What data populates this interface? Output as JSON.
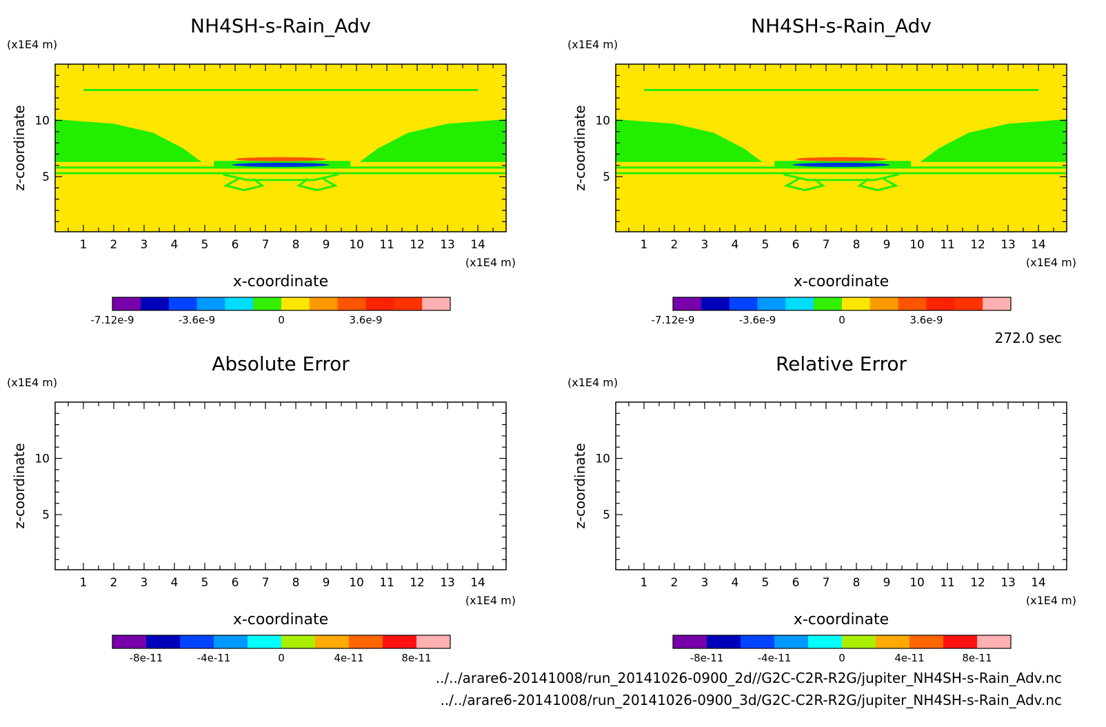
{
  "time_label": "272.0 sec",
  "file_paths": [
    "../../arare6-20141008/run_20141026-0900_2d//G2C-C2R-R2G/jupiter_NH4SH-s-Rain_Adv.nc",
    "../../arare6-20141008/run_20141026-0900_3d/G2C-C2R-R2G/jupiter_NH4SH-s-Rain_Adv.nc"
  ],
  "colors": {
    "field_background": "#ffe600",
    "field_zero_band": "#22ee00",
    "field_positive": "#ff5500",
    "field_negative": "#0033dd"
  },
  "chart_data": [
    {
      "type": "heatmap",
      "title": "NH4SH-s-Rain_Adv",
      "xlabel": "x-coordinate",
      "ylabel": "z-coordinate",
      "x_unit": "(x1E4 m)",
      "y_unit": "(x1E4 m)",
      "xlim": [
        0.07,
        14.93
      ],
      "ylim": [
        0.1,
        15.0
      ],
      "x_ticks": [
        "1",
        "2",
        "3",
        "4",
        "5",
        "6",
        "7",
        "8",
        "9",
        "10",
        "11",
        "12",
        "13",
        "14"
      ],
      "y_ticks": [
        "5",
        "10"
      ],
      "has_field": true,
      "colorbar": {
        "colors": [
          "#7700aa",
          "#0000bb",
          "#0044ff",
          "#0099ff",
          "#00ddff",
          "#33ee00",
          "#ffe600",
          "#ff9900",
          "#ff5500",
          "#ff2200",
          "#ff3300",
          "#ffb0b0"
        ],
        "ticks": [
          {
            "label": "-7.12e-9",
            "pos": 0.0
          },
          {
            "label": "-3.6e-9",
            "pos": 0.25
          },
          {
            "label": "0",
            "pos": 0.5
          },
          {
            "label": "3.6e-9",
            "pos": 0.75
          }
        ]
      }
    },
    {
      "type": "heatmap",
      "title": "NH4SH-s-Rain_Adv",
      "xlabel": "x-coordinate",
      "ylabel": "z-coordinate",
      "x_unit": "(x1E4 m)",
      "y_unit": "(x1E4 m)",
      "xlim": [
        0.07,
        14.93
      ],
      "ylim": [
        0.1,
        15.0
      ],
      "x_ticks": [
        "1",
        "2",
        "3",
        "4",
        "5",
        "6",
        "7",
        "8",
        "9",
        "10",
        "11",
        "12",
        "13",
        "14"
      ],
      "y_ticks": [
        "5",
        "10"
      ],
      "has_field": true,
      "colorbar": {
        "colors": [
          "#7700aa",
          "#0000bb",
          "#0044ff",
          "#0099ff",
          "#00ddff",
          "#33ee00",
          "#ffe600",
          "#ff9900",
          "#ff5500",
          "#ff2200",
          "#ff3300",
          "#ffb0b0"
        ],
        "ticks": [
          {
            "label": "-7.12e-9",
            "pos": 0.0
          },
          {
            "label": "-3.6e-9",
            "pos": 0.25
          },
          {
            "label": "0",
            "pos": 0.5
          },
          {
            "label": "3.6e-9",
            "pos": 0.75
          }
        ]
      }
    },
    {
      "type": "heatmap",
      "title": "Absolute Error",
      "xlabel": "x-coordinate",
      "ylabel": "z-coordinate",
      "x_unit": "(x1E4 m)",
      "y_unit": "(x1E4 m)",
      "xlim": [
        0.07,
        14.93
      ],
      "ylim": [
        0.1,
        15.0
      ],
      "x_ticks": [
        "1",
        "2",
        "3",
        "4",
        "5",
        "6",
        "7",
        "8",
        "9",
        "10",
        "11",
        "12",
        "13",
        "14"
      ],
      "y_ticks": [
        "5",
        "10"
      ],
      "has_field": false,
      "colorbar": {
        "colors": [
          "#7700aa",
          "#0000bb",
          "#0044ff",
          "#0099ff",
          "#00ffff",
          "#aaee00",
          "#ffaa00",
          "#ff6600",
          "#ff1111",
          "#ffb0b0"
        ],
        "ticks": [
          {
            "label": "-8e-11",
            "pos": 0.1
          },
          {
            "label": "-4e-11",
            "pos": 0.3
          },
          {
            "label": "0",
            "pos": 0.5
          },
          {
            "label": "4e-11",
            "pos": 0.7
          },
          {
            "label": "8e-11",
            "pos": 0.9
          }
        ]
      }
    },
    {
      "type": "heatmap",
      "title": "Relative Error",
      "xlabel": "x-coordinate",
      "ylabel": "z-coordinate",
      "x_unit": "(x1E4 m)",
      "y_unit": "(x1E4 m)",
      "xlim": [
        0.07,
        14.93
      ],
      "ylim": [
        0.1,
        15.0
      ],
      "x_ticks": [
        "1",
        "2",
        "3",
        "4",
        "5",
        "6",
        "7",
        "8",
        "9",
        "10",
        "11",
        "12",
        "13",
        "14"
      ],
      "y_ticks": [
        "5",
        "10"
      ],
      "has_field": false,
      "colorbar": {
        "colors": [
          "#7700aa",
          "#0000bb",
          "#0044ff",
          "#0099ff",
          "#00ffff",
          "#aaee00",
          "#ffaa00",
          "#ff6600",
          "#ff1111",
          "#ffb0b0"
        ],
        "ticks": [
          {
            "label": "-8e-11",
            "pos": 0.1
          },
          {
            "label": "-4e-11",
            "pos": 0.3
          },
          {
            "label": "0",
            "pos": 0.5
          },
          {
            "label": "4e-11",
            "pos": 0.7
          },
          {
            "label": "8e-11",
            "pos": 0.9
          }
        ]
      }
    }
  ]
}
